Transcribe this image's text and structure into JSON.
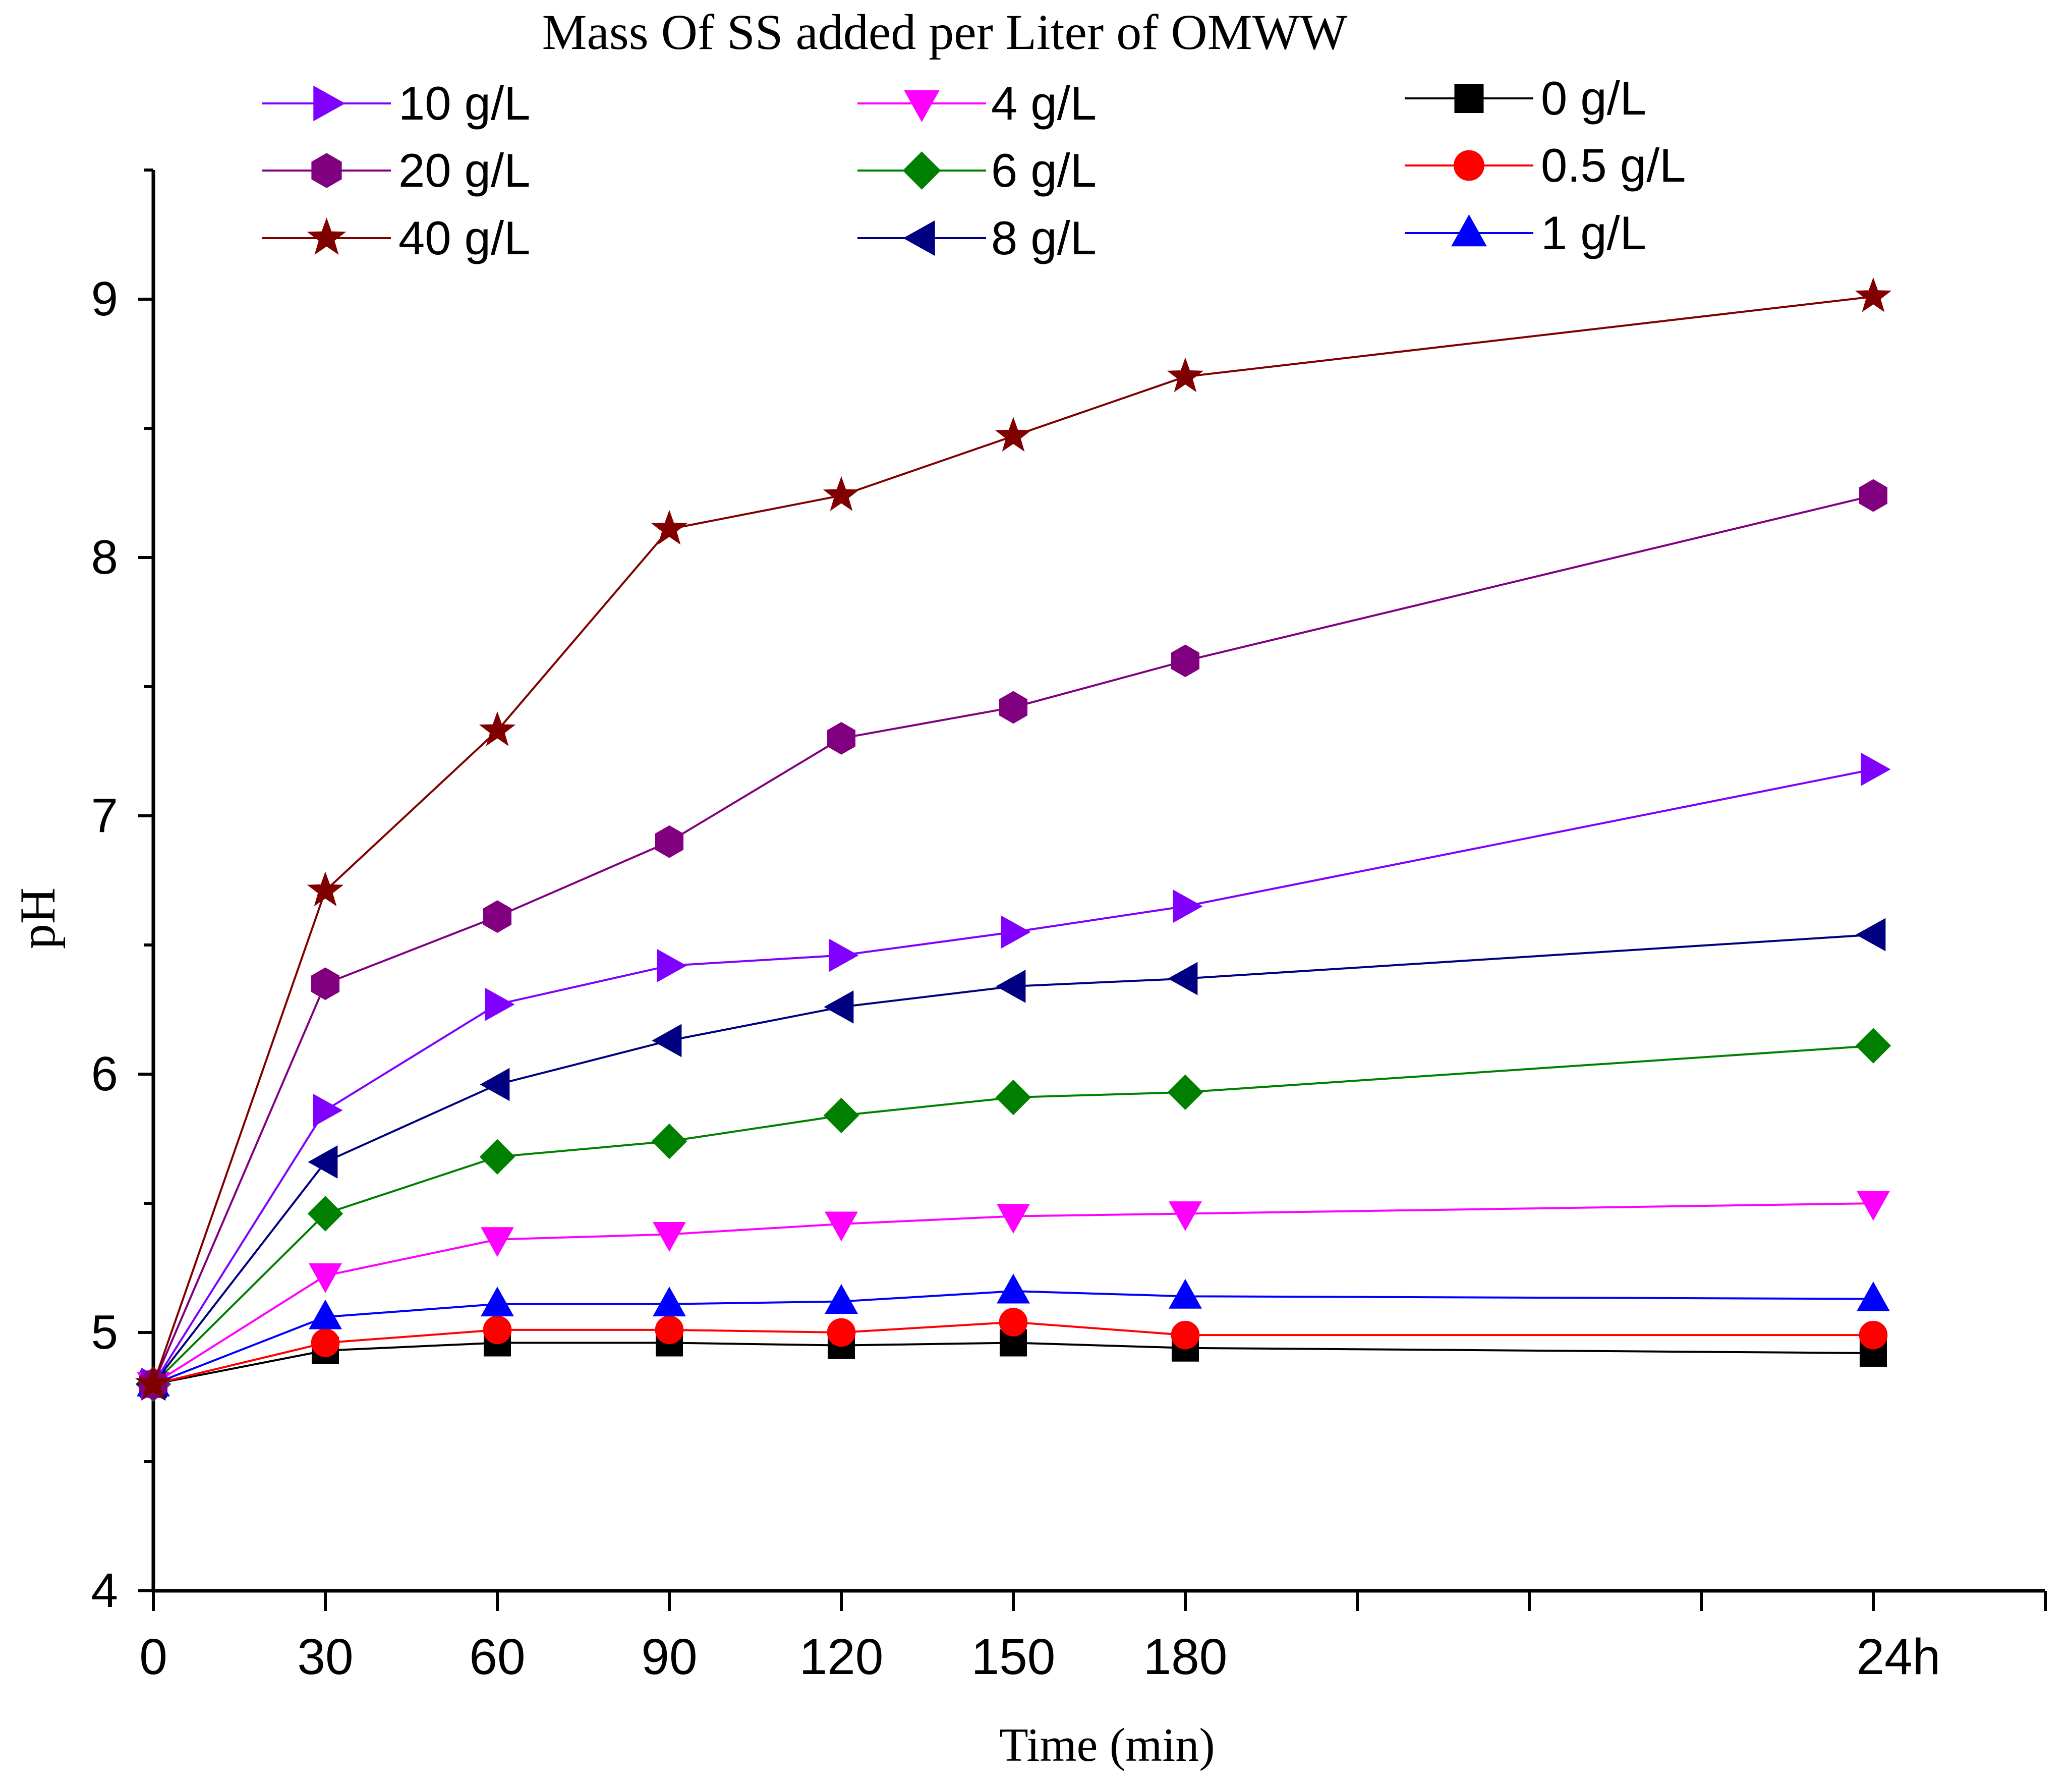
{
  "chart_data": {
    "type": "line",
    "title": "Mass Of SS added per Liter of OMWW",
    "xlabel": "Time (min)",
    "ylabel": "pH",
    "ylim": [
      4,
      9.5
    ],
    "yticks": [
      "4",
      "5",
      "6",
      "7",
      "8",
      "9"
    ],
    "categories": [
      "0",
      "30",
      "60",
      "90",
      "120",
      "150",
      "180",
      "24h"
    ],
    "category_positions": [
      0,
      30,
      60,
      90,
      120,
      150,
      180,
      300
    ],
    "xlim": [
      0,
      330
    ],
    "extra_xticks": [
      210,
      240,
      270,
      330
    ],
    "grid": false,
    "legend_position": "top",
    "series": [
      {
        "name": "0 g/L",
        "color": "#000000",
        "marker": "square",
        "values": [
          4.8,
          4.93,
          4.96,
          4.96,
          4.95,
          4.96,
          4.94,
          4.92
        ]
      },
      {
        "name": "0.5 g/L",
        "color": "#ff0000",
        "marker": "circle",
        "values": [
          4.8,
          4.96,
          5.01,
          5.01,
          5.0,
          5.04,
          4.99,
          4.99
        ]
      },
      {
        "name": "1 g/L",
        "color": "#0000ff",
        "marker": "triangle-up",
        "values": [
          4.8,
          5.06,
          5.11,
          5.11,
          5.12,
          5.16,
          5.14,
          5.13
        ]
      },
      {
        "name": "4 g/L",
        "color": "#ff00ff",
        "marker": "triangle-down",
        "values": [
          4.8,
          5.22,
          5.36,
          5.38,
          5.42,
          5.45,
          5.46,
          5.5
        ]
      },
      {
        "name": "6 g/L",
        "color": "#008000",
        "marker": "diamond",
        "values": [
          4.8,
          5.46,
          5.68,
          5.74,
          5.84,
          5.91,
          5.93,
          6.11
        ]
      },
      {
        "name": "8 g/L",
        "color": "#000080",
        "marker": "triangle-left",
        "values": [
          4.8,
          5.66,
          5.96,
          6.13,
          6.26,
          6.34,
          6.37,
          6.54
        ]
      },
      {
        "name": "10 g/L",
        "color": "#8000ff",
        "marker": "triangle-right",
        "values": [
          4.8,
          5.86,
          6.27,
          6.42,
          6.46,
          6.55,
          6.65,
          7.18
        ]
      },
      {
        "name": "20 g/L",
        "color": "#800080",
        "marker": "hexagon",
        "values": [
          4.8,
          6.35,
          6.61,
          6.9,
          7.3,
          7.42,
          7.6,
          8.24
        ]
      },
      {
        "name": "40 g/L",
        "color": "#800000",
        "marker": "star",
        "values": [
          4.8,
          6.71,
          7.33,
          8.11,
          8.24,
          8.47,
          8.7,
          9.01
        ]
      }
    ],
    "legend_order": [
      "10 g/L",
      "20 g/L",
      "40 g/L",
      "4 g/L",
      "6 g/L",
      "8 g/L",
      "0 g/L",
      "0.5 g/L",
      "1 g/L"
    ]
  }
}
